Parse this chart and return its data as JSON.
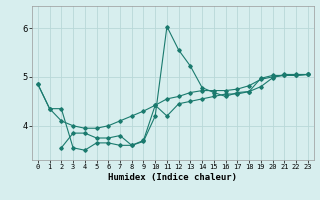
{
  "xlabel": "Humidex (Indice chaleur)",
  "bg_color": "#d7eeee",
  "grid_color": "#b8d8d8",
  "line_color": "#1a7a6e",
  "xlim": [
    -0.5,
    23.5
  ],
  "ylim": [
    3.3,
    6.45
  ],
  "yticks": [
    4,
    5,
    6
  ],
  "xticks": [
    0,
    1,
    2,
    3,
    4,
    5,
    6,
    7,
    8,
    9,
    10,
    11,
    12,
    13,
    14,
    15,
    16,
    17,
    18,
    19,
    20,
    21,
    22,
    23
  ],
  "line1_x": [
    0,
    1,
    2,
    3,
    4,
    5,
    6,
    7,
    8,
    9,
    10,
    11,
    12,
    13,
    14,
    15,
    16,
    17,
    18,
    19,
    20,
    21,
    22,
    23
  ],
  "line1_y": [
    4.85,
    4.35,
    4.35,
    3.55,
    3.5,
    3.65,
    3.65,
    3.6,
    3.6,
    3.68,
    4.2,
    6.03,
    5.55,
    5.22,
    4.78,
    4.68,
    4.6,
    4.68,
    4.7,
    4.97,
    5.03,
    5.03,
    5.03,
    5.05
  ],
  "line2_x": [
    2,
    3,
    4,
    5,
    6,
    7,
    8,
    9,
    10,
    11,
    12,
    13,
    14,
    15,
    16,
    17,
    18,
    19,
    20,
    21,
    22,
    23
  ],
  "line2_y": [
    3.55,
    3.85,
    3.85,
    3.75,
    3.75,
    3.8,
    3.6,
    3.7,
    4.42,
    4.2,
    4.45,
    4.5,
    4.55,
    4.6,
    4.65,
    4.65,
    4.7,
    4.8,
    4.98,
    5.05,
    5.05,
    5.05
  ],
  "line3_x": [
    0,
    1,
    2,
    3,
    4,
    5,
    6,
    7,
    8,
    9,
    10,
    11,
    12,
    13,
    14,
    15,
    16,
    17,
    18,
    19,
    20,
    21,
    22,
    23
  ],
  "line3_y": [
    4.85,
    4.35,
    4.1,
    4.0,
    3.95,
    3.95,
    4.0,
    4.1,
    4.2,
    4.3,
    4.42,
    4.55,
    4.6,
    4.68,
    4.72,
    4.72,
    4.72,
    4.75,
    4.82,
    4.95,
    5.0,
    5.03,
    5.03,
    5.05
  ]
}
